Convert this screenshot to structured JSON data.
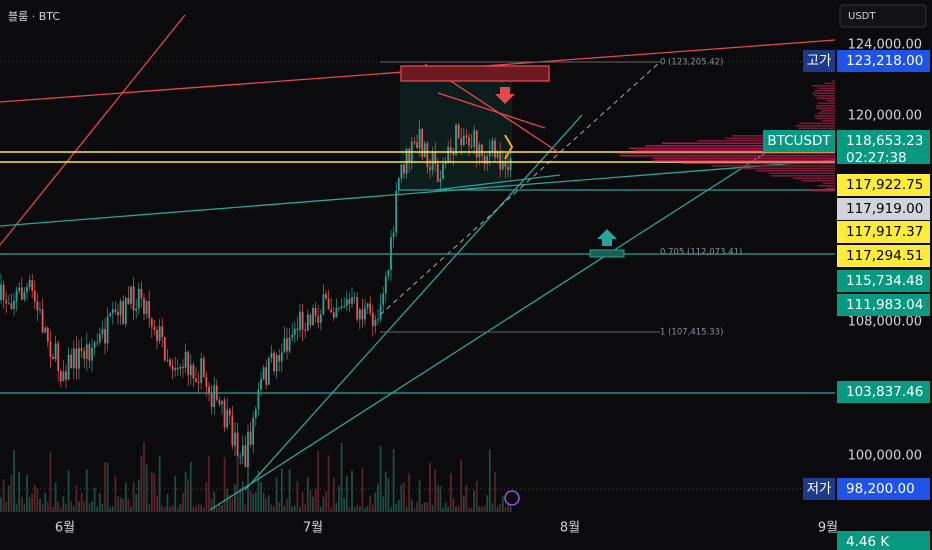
{
  "header": {
    "symbol": "블룸 · BTC",
    "currency": "USDT"
  },
  "price_axis": {
    "ticks": [
      "124,000.00",
      "120,000.00",
      "108,000.00",
      "100,000.00"
    ]
  },
  "price_tags": [
    {
      "label": "고가",
      "price": "123,218.00"
    },
    {
      "label": "BTCUSDT",
      "price": "118,653.23",
      "countdown": "02:27:38"
    },
    {
      "price": "117,922.75"
    },
    {
      "price": "117,919.00"
    },
    {
      "price": "117,917.37"
    },
    {
      "price": "117,294.51"
    },
    {
      "price": "115,734.48"
    },
    {
      "price": "111,983.04"
    },
    {
      "price": "103,837.46"
    },
    {
      "label": "저가",
      "price": "98,200.00"
    },
    {
      "price": "4.46 K"
    }
  ],
  "time_axis": [
    "6월",
    "7월",
    "8월",
    "9월"
  ],
  "fib_labels": [
    "0 (123,205.42)",
    "0.705 (112,073.41)",
    "1 (107,415.33)"
  ]
}
